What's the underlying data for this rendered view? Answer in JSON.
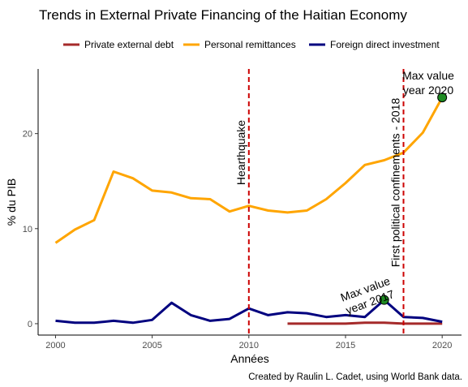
{
  "chart_data": {
    "type": "line",
    "title": "Trends in External Private Financing of the Haitian Economy",
    "xlabel": "Années",
    "ylabel": "% du PIB",
    "caption": "Created by Raulin L. Cadet, using World Bank data.",
    "xlim": [
      1999.1,
      2021.0
    ],
    "ylim": [
      -1.2,
      26.8
    ],
    "xticks": [
      2000,
      2005,
      2010,
      2015,
      2020
    ],
    "yticks": [
      0,
      10,
      20
    ],
    "grid": false,
    "legend_position": "top",
    "series": [
      {
        "name": "Private external debt",
        "color": "#a52a2a",
        "x": [
          2012,
          2013,
          2014,
          2015,
          2016,
          2017,
          2018,
          2019,
          2020
        ],
        "y": [
          0.0,
          0.0,
          0.0,
          0.0,
          0.1,
          0.1,
          0.0,
          0.0,
          0.0
        ]
      },
      {
        "name": "Personal remittances",
        "color": "#ffa500",
        "x": [
          2000,
          2001,
          2002,
          2003,
          2004,
          2005,
          2006,
          2007,
          2008,
          2009,
          2010,
          2011,
          2012,
          2013,
          2014,
          2015,
          2016,
          2017,
          2018,
          2019,
          2020
        ],
        "y": [
          8.5,
          9.9,
          10.9,
          16.0,
          15.3,
          14.0,
          13.8,
          13.2,
          13.1,
          11.8,
          12.4,
          11.9,
          11.7,
          11.9,
          13.1,
          14.8,
          16.7,
          17.2,
          18.0,
          20.1,
          23.8
        ]
      },
      {
        "name": "Foreign direct investment",
        "color": "#00007f",
        "x": [
          2000,
          2001,
          2002,
          2003,
          2004,
          2005,
          2006,
          2007,
          2008,
          2009,
          2010,
          2011,
          2012,
          2013,
          2014,
          2015,
          2016,
          2017,
          2018,
          2019,
          2020
        ],
        "y": [
          0.3,
          0.1,
          0.1,
          0.3,
          0.1,
          0.4,
          2.2,
          0.9,
          0.3,
          0.5,
          1.6,
          0.9,
          1.2,
          1.1,
          0.7,
          0.9,
          0.7,
          2.5,
          0.7,
          0.6,
          0.2
        ]
      }
    ],
    "vlines": [
      {
        "x": 2010,
        "label": "Hearthquake",
        "color": "#cc0000"
      },
      {
        "x": 2018,
        "label": "First political confinements - 2018",
        "color": "#cc0000"
      }
    ],
    "max_markers": [
      {
        "x": 2020,
        "y": 23.8,
        "label_line1": "Max value",
        "label_line2": "year  2020",
        "color": "#1e8b22"
      },
      {
        "x": 2017,
        "y": 2.5,
        "label_line1": "Max value",
        "label_line2": "year  2017",
        "color": "#1e8b22"
      }
    ]
  }
}
